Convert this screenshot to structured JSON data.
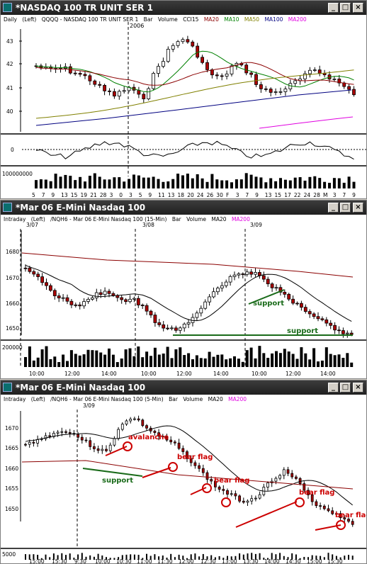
{
  "window1": {
    "title": "*NASDAQ 100 TR UNIT SER 1",
    "info": {
      "interval": "Daily",
      "scale": "(Left)",
      "symbol": "QQQQ - NASDAQ 100 TR UNIT SER 1",
      "bar": "Bar",
      "volume": "Volume",
      "cci": "CCI15",
      "ma20": "MA20",
      "ma10": "MA10",
      "ma50": "MA50",
      "ma100": "MA100",
      "ma200": "MA200"
    },
    "year_label": "2006",
    "price_ticks": [
      "43",
      "42",
      "41",
      "40"
    ],
    "cci_tick": "0",
    "volume_tick": "100000000",
    "date_ticks": [
      "5",
      "7",
      "9",
      "13",
      "15",
      "19",
      "21",
      "28",
      "3",
      "0",
      "3",
      "5",
      "9",
      "11",
      "13",
      "18",
      "20",
      "24",
      "26",
      "30",
      "F",
      "3",
      "7",
      "9",
      "13",
      "15",
      "17",
      "22",
      "24",
      "28",
      "M",
      "3",
      "7",
      "9"
    ]
  },
  "window2": {
    "title": "*Mar 06  E-Mini Nasdaq 100",
    "info": {
      "interval": "Intraday",
      "scale": "(Left)",
      "symbol": "/NQH6 - Mar 06  E-Mini Nasdaq 100 (15-Min)",
      "bar": "Bar",
      "volume": "Volume",
      "ma20": "MA20",
      "ma200": "MA200"
    },
    "day_labels": [
      "3/07",
      "3/08",
      "3/09"
    ],
    "price_ticks": [
      "1680",
      "1670",
      "1660",
      "1650"
    ],
    "volume_tick": "200000",
    "time_ticks": [
      "10:00",
      "12:00",
      "14:00",
      "10:00",
      "12:00",
      "14:00",
      "10:00",
      "12:00",
      "14:00"
    ],
    "annotations": [
      "support",
      "support"
    ]
  },
  "window3": {
    "title": "*Mar 06  E-Mini Nasdaq 100",
    "info": {
      "interval": "Intraday",
      "scale": "(Left)",
      "symbol": "/NQH6 - Mar 06  E-Mini Nasdaq 100 (5-Min)",
      "bar": "Bar",
      "volume": "Volume",
      "ma20": "MA20",
      "ma200": "MA200"
    },
    "day_label": "3/09",
    "price_ticks": [
      "1670",
      "1665",
      "1660",
      "1655",
      "1650"
    ],
    "volume_tick": "5000",
    "time_ticks": [
      "15:00",
      "15:30",
      "9:30",
      "10:00",
      "10:30",
      "11:00",
      "11:30",
      "12:00",
      "12:30",
      "13:00",
      "13:30",
      "14:00",
      "14:30",
      "15:00",
      "15:30"
    ],
    "annotations": {
      "avalanche": "avalanche",
      "support": "support",
      "bear_flag_1": "bear flag",
      "bear_flag_2": "bear flag",
      "bear_flag_3": "bear flag",
      "bear_flag_4": "bear flag"
    }
  },
  "colors": {
    "ma20": "#8b0000",
    "ma10": "#008000",
    "ma50": "#808000",
    "ma100": "#000080",
    "ma200": "#e000e0",
    "annotation_red": "#cc0000",
    "annotation_green": "#1a6b1a",
    "candle_up": "#ffffff",
    "candle_down": "#aa0000"
  }
}
